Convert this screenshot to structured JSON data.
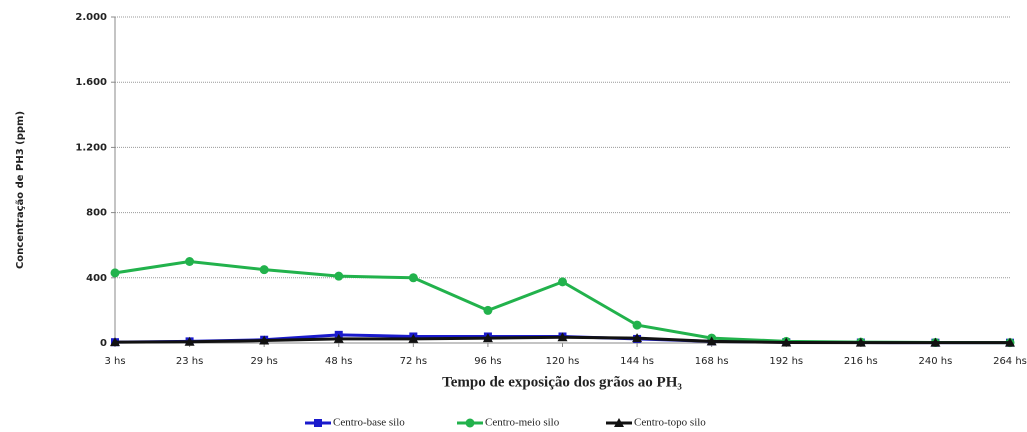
{
  "chart_data": {
    "type": "line",
    "y_label": "Concentração de PH3 (ppm)",
    "x_label": "Tempo de exposição dos grãos ao PH₃",
    "categories": [
      "3 hs",
      "23 hs",
      "29 hs",
      "48 hs",
      "72 hs",
      "96 hs",
      "120 hs",
      "144 hs",
      "168 hs",
      "192 hs",
      "216 hs",
      "240 hs",
      "264 hs"
    ],
    "series": [
      {
        "name": "Centro-base silo",
        "color": "#1a1acc",
        "marker": "square",
        "values": [
          5,
          10,
          20,
          50,
          40,
          40,
          40,
          25,
          10,
          5,
          3,
          2,
          2
        ]
      },
      {
        "name": "Centro-meio silo",
        "color": "#22b24c",
        "marker": "circle",
        "values": [
          430,
          500,
          450,
          410,
          400,
          200,
          375,
          110,
          30,
          10,
          5,
          3,
          2
        ]
      },
      {
        "name": "Centro-topo silo",
        "color": "#111111",
        "marker": "triangle",
        "values": [
          5,
          8,
          15,
          25,
          25,
          30,
          35,
          30,
          10,
          3,
          2,
          2,
          2
        ]
      }
    ],
    "ylim": [
      0,
      2000
    ],
    "yticks": [
      0,
      400,
      800,
      {
        "value": 1200,
        "label": "1.200"
      },
      {
        "value": 1600,
        "label": "1.600"
      },
      {
        "value": 2000,
        "label": "2.000"
      }
    ],
    "grid": true,
    "legend": "bottom"
  }
}
